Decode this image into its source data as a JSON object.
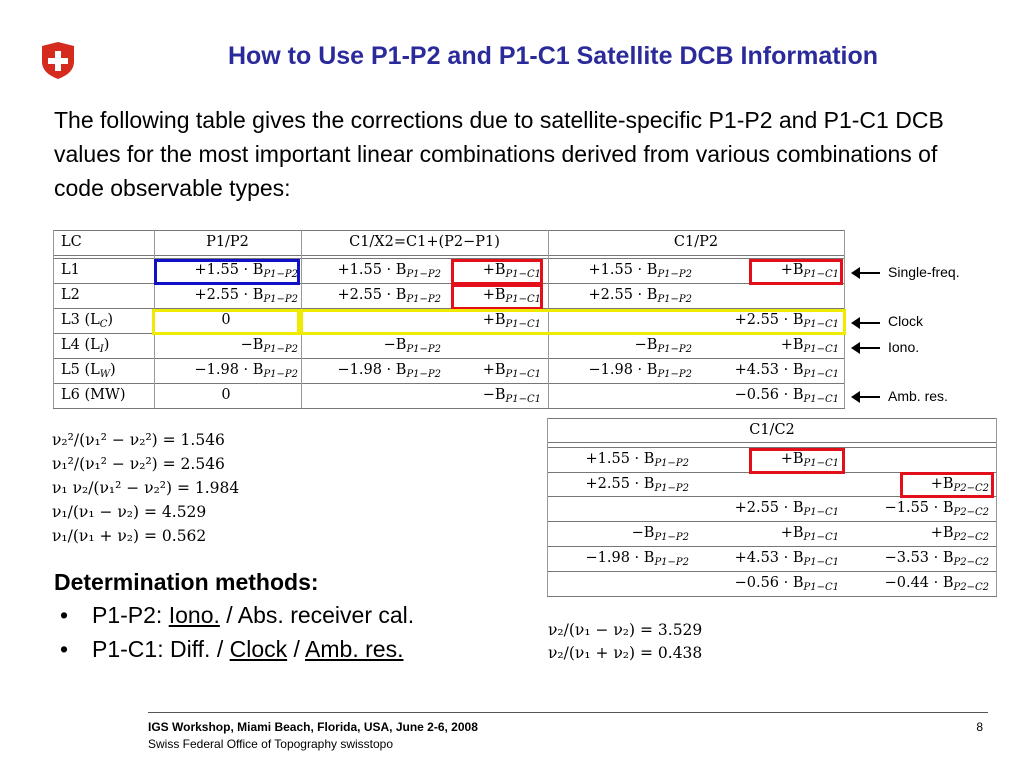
{
  "title": "How to Use P1-P2 and P1-C1 Satellite DCB Information",
  "intro": "The following table gives the corrections due to satellite-specific P1-P2 and P1-C1 DCB values for the most important linear combinations derived from various combinations of code observable types:",
  "table_main": {
    "headers": [
      "LC",
      "P1/P2",
      "C1/X2=C1+(P2−P1)",
      "C1/P2"
    ],
    "rows": [
      {
        "lc": "L1",
        "p1p2": "+1.55 · B",
        "p1p2_sub": "P1−P2",
        "c1x2_a": "+1.55 · B",
        "c1x2_a_sub": "P1−P2",
        "c1x2_b": "+B",
        "c1x2_b_sub": "P1−C1",
        "c1p2_a": "+1.55 · B",
        "c1p2_a_sub": "P1−P2",
        "c1p2_b": "+B",
        "c1p2_b_sub": "P1−C1"
      },
      {
        "lc": "L2",
        "p1p2": "+2.55 · B",
        "p1p2_sub": "P1−P2",
        "c1x2_a": "+2.55 · B",
        "c1x2_a_sub": "P1−P2",
        "c1x2_b": "+B",
        "c1x2_b_sub": "P1−C1",
        "c1p2_a": "+2.55 · B",
        "c1p2_a_sub": "P1−P2",
        "c1p2_b": "",
        "c1p2_b_sub": ""
      },
      {
        "lc": "L3 (L",
        "lc_sub": "C",
        "lc_end": ")",
        "p1p2": "0",
        "p1p2_sub": "",
        "c1x2_a": "",
        "c1x2_a_sub": "",
        "c1x2_b": "+B",
        "c1x2_b_sub": "P1−C1",
        "c1p2_a": "",
        "c1p2_a_sub": "",
        "c1p2_b": "+2.55 · B",
        "c1p2_b_sub": "P1−C1"
      },
      {
        "lc": "L4 (L",
        "lc_sub": "I",
        "lc_end": ")",
        "p1p2": "−B",
        "p1p2_sub": "P1−P2",
        "c1x2_a": "−B",
        "c1x2_a_sub": "P1−P2",
        "c1x2_b": "",
        "c1x2_b_sub": "",
        "c1p2_a": "−B",
        "c1p2_a_sub": "P1−P2",
        "c1p2_b": "+B",
        "c1p2_b_sub": "P1−C1"
      },
      {
        "lc": "L5 (L",
        "lc_sub": "W",
        "lc_end": ")",
        "p1p2": "−1.98 · B",
        "p1p2_sub": "P1−P2",
        "c1x2_a": "−1.98 · B",
        "c1x2_a_sub": "P1−P2",
        "c1x2_b": "+B",
        "c1x2_b_sub": "P1−C1",
        "c1p2_a": "−1.98 · B",
        "c1p2_a_sub": "P1−P2",
        "c1p2_b": "+4.53 · B",
        "c1p2_b_sub": "P1−C1"
      },
      {
        "lc": "L6 (MW)",
        "p1p2": "0",
        "p1p2_sub": "",
        "c1x2_a": "",
        "c1x2_a_sub": "",
        "c1x2_b": "−B",
        "c1x2_b_sub": "P1−C1",
        "c1p2_a": "",
        "c1p2_a_sub": "",
        "c1p2_b": "−0.56 · B",
        "c1p2_b_sub": "P1−C1"
      }
    ]
  },
  "annotations": [
    "Single-freq.",
    "Clock",
    "Iono.",
    "Amb. res."
  ],
  "table_c1c2": {
    "header": "C1/C2",
    "rows": [
      {
        "a": "+1.55 · B",
        "a_sub": "P1−P2",
        "b": "+B",
        "b_sub": "P1−C1",
        "c": "",
        "c_sub": ""
      },
      {
        "a": "+2.55 · B",
        "a_sub": "P1−P2",
        "b": "",
        "b_sub": "",
        "c": "+B",
        "c_sub": "P2−C2"
      },
      {
        "a": "",
        "a_sub": "",
        "b": "+2.55 · B",
        "b_sub": "P1−C1",
        "c": "−1.55 · B",
        "c_sub": "P2−C2"
      },
      {
        "a": "−B",
        "a_sub": "P1−P2",
        "b": "+B",
        "b_sub": "P1−C1",
        "c": "+B",
        "c_sub": "P2−C2"
      },
      {
        "a": "−1.98 · B",
        "a_sub": "P1−P2",
        "b": "+4.53 · B",
        "b_sub": "P1−C1",
        "c": "−3.53 · B",
        "c_sub": "P2−C2"
      },
      {
        "a": "",
        "a_sub": "",
        "b": "−0.56 · B",
        "b_sub": "P1−C1",
        "c": "−0.44 · B",
        "c_sub": "P2−C2"
      }
    ]
  },
  "formulas_left": [
    "ν₂²/(ν₁² − ν₂²) = 1.546",
    "ν₁²/(ν₁² − ν₂²) = 2.546",
    "ν₁ ν₂/(ν₁² − ν₂²) = 1.984",
    "ν₁/(ν₁ − ν₂) = 4.529",
    "ν₁/(ν₁ + ν₂) = 0.562"
  ],
  "formulas_right": [
    "ν₂/(ν₁ − ν₂) = 3.529",
    "ν₂/(ν₁ + ν₂) = 0.438"
  ],
  "methods": {
    "title": "Determination methods:",
    "b1_prefix": "P1-P2: ",
    "b1_link": "Iono.",
    "b1_rest": " / Abs. receiver cal.",
    "b2_prefix": "P1-C1: Diff. / ",
    "b2_link1": "Clock",
    "b2_sep": " / ",
    "b2_link2": "Amb. res."
  },
  "footer": {
    "line1": "IGS Workshop, Miami Beach, Florida, USA, June 2-6, 2008",
    "line2": "Swiss Federal Office of Topography swisstopo",
    "page": "8"
  },
  "colors": {
    "title": "#2b2a9a",
    "red_box": "#e3101b",
    "blue_box": "#1010c8",
    "yellow_box": "#f0ea00",
    "logo_red": "#d52b1e"
  }
}
